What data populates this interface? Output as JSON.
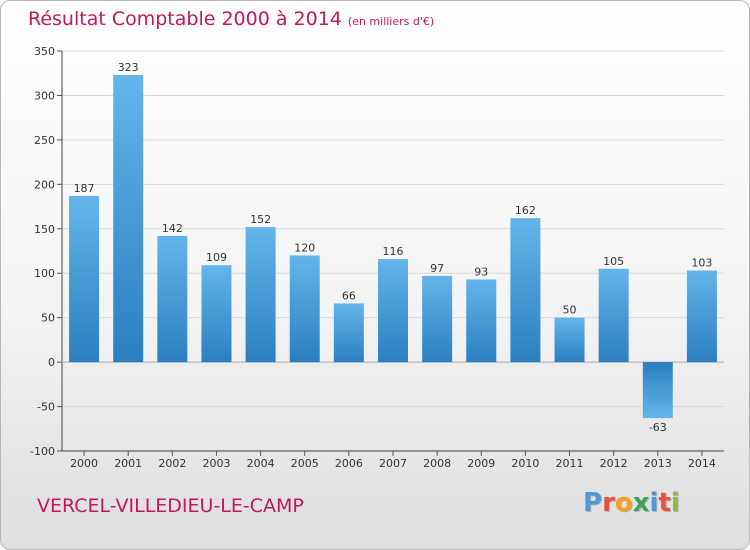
{
  "header": {
    "title": "Résultat Comptable 2000 à 2014",
    "subtitle": "(en milliers d'€)"
  },
  "footer": {
    "commune": "VERCEL-VILLEDIEU-LE-CAMP",
    "logo": [
      "P",
      "r",
      "o",
      "x",
      "i",
      "t",
      "i"
    ]
  },
  "colors": {
    "accent": "#c2185b",
    "bar_dark": "#2b7fc0",
    "bar_light": "#64b5ea",
    "grid": "#d9d9d9",
    "logo": [
      "#4e9ad6",
      "#e6533c",
      "#f4a21e",
      "#3aa55d",
      "#4e9ad6",
      "#e6533c",
      "#8cbf3f"
    ]
  },
  "chart_data": {
    "type": "bar",
    "title": "Résultat Comptable 2000 à 2014",
    "subtitle": "(en milliers d'€)",
    "categories": [
      "2000",
      "2001",
      "2002",
      "2003",
      "2004",
      "2005",
      "2006",
      "2007",
      "2008",
      "2009",
      "2010",
      "2011",
      "2012",
      "2013",
      "2014"
    ],
    "values": [
      187,
      323,
      142,
      109,
      152,
      120,
      66,
      116,
      97,
      93,
      162,
      50,
      105,
      -63,
      103
    ],
    "ylim": [
      -100,
      350
    ],
    "yticks": [
      -100,
      -50,
      0,
      50,
      100,
      150,
      200,
      250,
      300,
      350
    ],
    "grid": true,
    "legend": "none"
  }
}
